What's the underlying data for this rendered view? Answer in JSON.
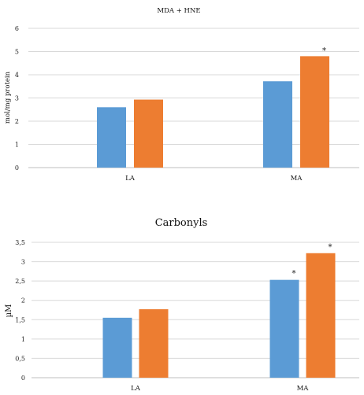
{
  "chart_data": [
    {
      "type": "bar",
      "title": "MDA + HNE",
      "ylabel": "mol/mg protein",
      "xlabel": "",
      "categories": [
        "LA",
        "MA"
      ],
      "ylim": [
        0,
        6
      ],
      "yticks": [
        "0",
        "1",
        "2",
        "3",
        "4",
        "5",
        "6"
      ],
      "grid": true,
      "series": [
        {
          "values": [
            2.6,
            3.72
          ],
          "color": "#5b9bd5"
        },
        {
          "values": [
            2.93,
            4.8
          ],
          "color": "#ed7d31"
        }
      ],
      "annotations": [
        {
          "category": "MA",
          "series": 1,
          "text": "*"
        }
      ]
    },
    {
      "type": "bar",
      "title": "Carbonyls",
      "ylabel": "µM",
      "xlabel": "",
      "categories": [
        "LA",
        "MA"
      ],
      "ylim": [
        0,
        3.5
      ],
      "yticks": [
        "0",
        "0,5",
        "1",
        "1,5",
        "2",
        "2,5",
        "3",
        "3,5"
      ],
      "grid": true,
      "series": [
        {
          "values": [
            1.55,
            2.53
          ],
          "color": "#5b9bd5"
        },
        {
          "values": [
            1.77,
            3.22
          ],
          "color": "#ed7d31"
        }
      ],
      "annotations": [
        {
          "category": "MA",
          "series": 0,
          "text": "*"
        },
        {
          "category": "MA",
          "series": 1,
          "text": "*"
        }
      ]
    }
  ]
}
